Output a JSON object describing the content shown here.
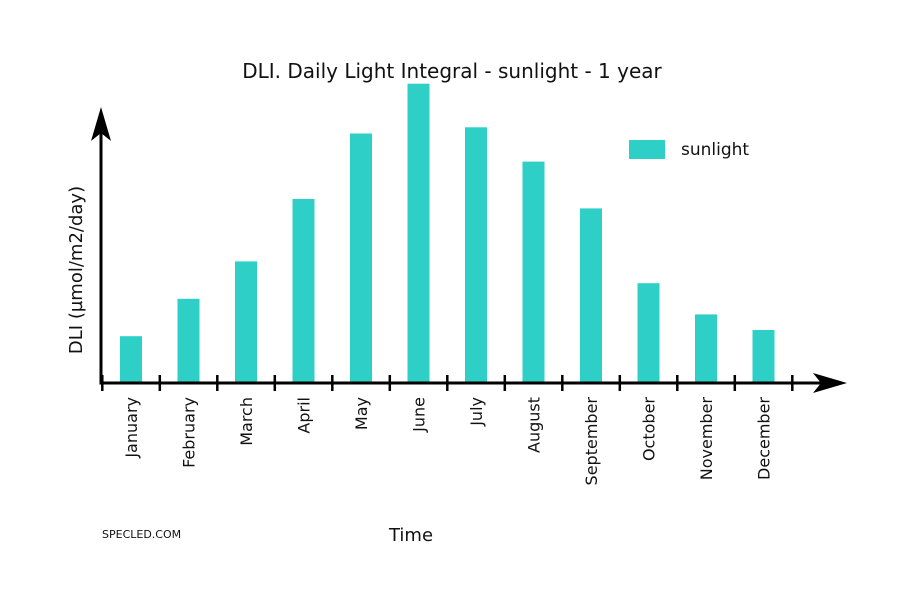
{
  "chart_data": {
    "type": "bar",
    "title": "DLI. Daily Light Integral - sunlight - 1 year",
    "xlabel": "Time",
    "ylabel": "DLI (µmol/m2/day)",
    "categories": [
      "January",
      "February",
      "March",
      "April",
      "May",
      "June",
      "July",
      "August",
      "September",
      "October",
      "November",
      "December"
    ],
    "series": [
      {
        "name": "sunlight",
        "values": [
          15,
          27,
          39,
          59,
          80,
          96,
          82,
          71,
          56,
          32,
          22,
          17
        ],
        "color": "#2ecfc6"
      }
    ],
    "ylim": [
      0,
      110
    ],
    "y_ticks_shown": false,
    "grid": false,
    "legend_position": "top-right",
    "axis_color": "#000000"
  },
  "footer": {
    "brand": "SPECLED.COM"
  }
}
